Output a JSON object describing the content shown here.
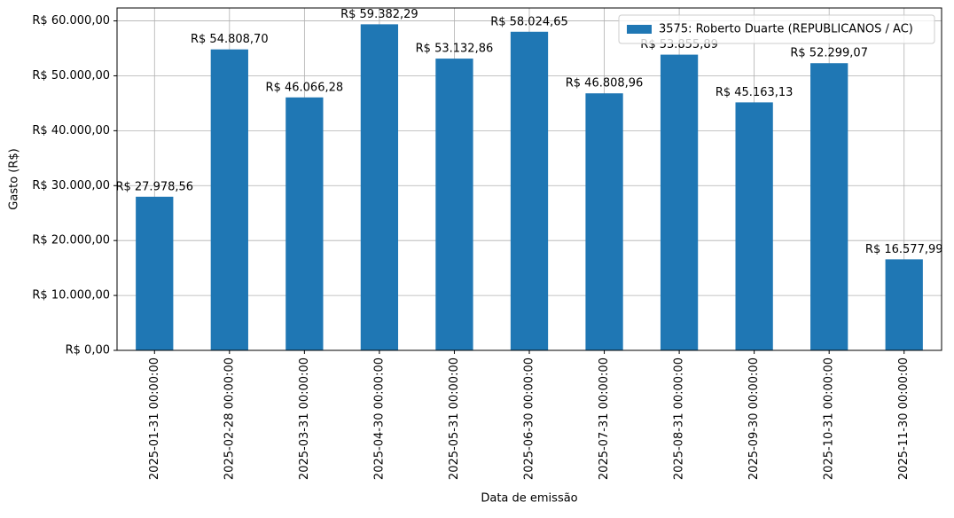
{
  "chart_data": {
    "type": "bar",
    "xlabel": "Data de emissão",
    "ylabel": "Gasto (R$)",
    "categories": [
      "2025-01-31 00:00:00",
      "2025-02-28 00:00:00",
      "2025-03-31 00:00:00",
      "2025-04-30 00:00:00",
      "2025-05-31 00:00:00",
      "2025-06-30 00:00:00",
      "2025-07-31 00:00:00",
      "2025-08-31 00:00:00",
      "2025-09-30 00:00:00",
      "2025-10-31 00:00:00",
      "2025-11-30 00:00:00"
    ],
    "series": [
      {
        "name": "3575: Roberto Duarte (REPUBLICANOS / AC)",
        "color": "#1f77b4",
        "values": [
          27978.56,
          54808.7,
          46066.28,
          59382.29,
          53132.86,
          58024.65,
          46808.96,
          53855.89,
          45163.13,
          52299.07,
          16577.99
        ],
        "value_labels": [
          "R$ 27.978,56",
          "R$ 54.808,70",
          "R$ 46.066,28",
          "R$ 59.382,29",
          "R$ 53.132,86",
          "R$ 58.024,65",
          "R$ 46.808,96",
          "R$ 53.855,89",
          "R$ 45.163,13",
          "R$ 52.299,07",
          "R$ 16.577,99"
        ]
      }
    ],
    "ylim": [
      0,
      62351.4
    ],
    "yticks": [
      {
        "value": 0,
        "label": "R$ 0,00"
      },
      {
        "value": 10000,
        "label": "R$ 10.000,00"
      },
      {
        "value": 20000,
        "label": "R$ 20.000,00"
      },
      {
        "value": 30000,
        "label": "R$ 30.000,00"
      },
      {
        "value": 40000,
        "label": "R$ 40.000,00"
      },
      {
        "value": 50000,
        "label": "R$ 50.000,00"
      },
      {
        "value": 60000,
        "label": "R$ 60.000,00"
      }
    ],
    "grid": true,
    "legend": "upper right"
  }
}
